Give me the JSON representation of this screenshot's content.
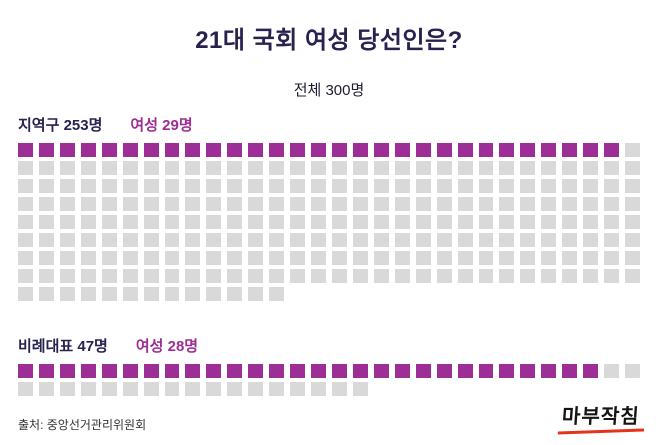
{
  "title": "21대 국회 여성 당선인은?",
  "subtitle": "전체 300명",
  "source": "출처: 중앙선거관리위원회",
  "logo": "마부작침",
  "colors": {
    "title": "#27224f",
    "accent": "#9c2e96",
    "gray": "#d9d9d9",
    "logo_red": "#e5341e"
  },
  "chart_data": {
    "type": "waffle",
    "title": "21대 국회 여성 당선인은?",
    "subtitle_total": "전체 300명",
    "total": 300,
    "per_row": 30,
    "legend": {
      "women_color": "#9c2e96",
      "other_color": "#d9d9d9"
    },
    "sections": [
      {
        "label": "지역구 253명",
        "women_label": "여성 29명",
        "total": 253,
        "women": 29
      },
      {
        "label": "비례대표 47명",
        "women_label": "여성 28명",
        "total": 47,
        "women": 28
      }
    ]
  }
}
